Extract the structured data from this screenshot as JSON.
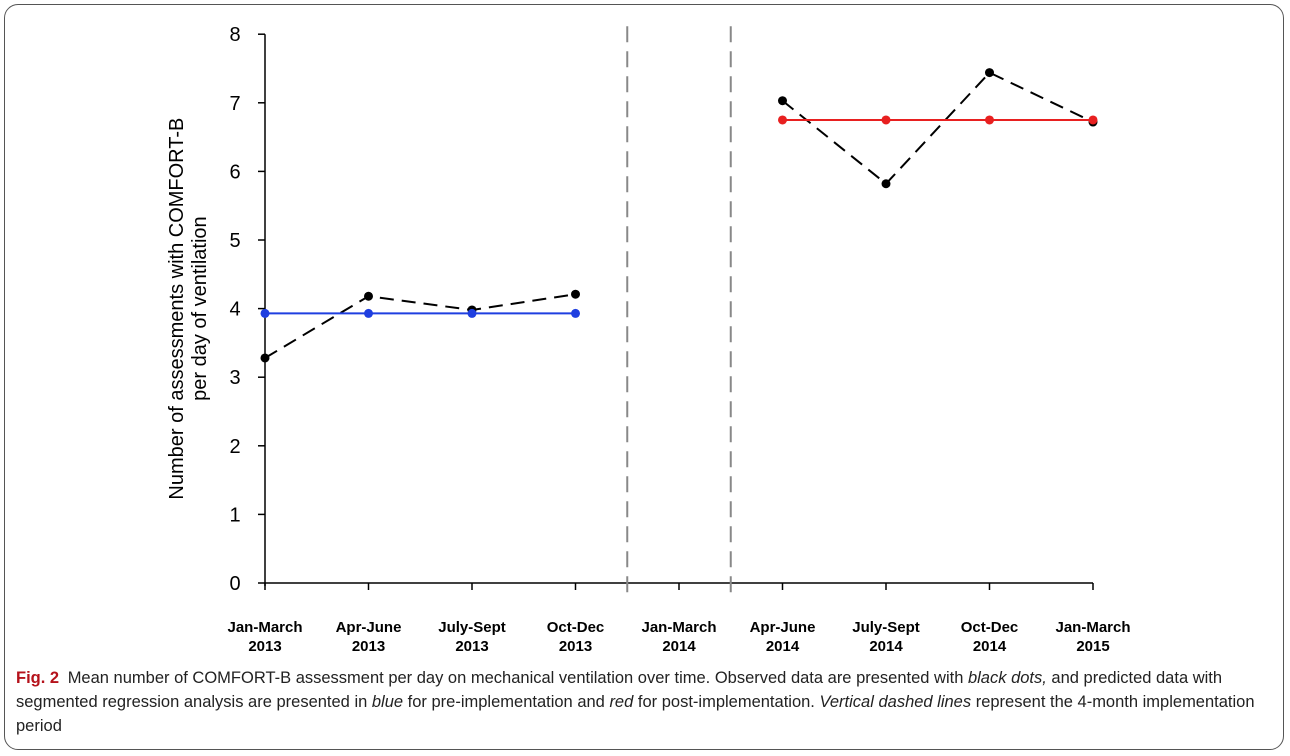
{
  "chart_data": {
    "type": "line",
    "ylabel_line1": "Number of assessments with COMFORT-B",
    "ylabel_line2": "per day of ventilation",
    "ylim": [
      0,
      8
    ],
    "yticks": [
      0,
      1,
      2,
      3,
      4,
      5,
      6,
      7,
      8
    ],
    "categories": [
      [
        "Jan-March",
        "2013"
      ],
      [
        "Apr-June",
        "2013"
      ],
      [
        "July-Sept",
        "2013"
      ],
      [
        "Oct-Dec",
        "2013"
      ],
      [
        "Jan-March",
        "2014"
      ],
      [
        "Apr-June",
        "2014"
      ],
      [
        "July-Sept",
        "2014"
      ],
      [
        "Oct-Dec",
        "2014"
      ],
      [
        "Jan-March",
        "2015"
      ]
    ],
    "series": [
      {
        "values": [
          3.28,
          4.18,
          3.98,
          4.21,
          null,
          7.03,
          5.82,
          7.44,
          6.72
        ],
        "color": "#000000",
        "style": "dashed-black-dots"
      },
      {
        "values": [
          3.93,
          3.93,
          3.93,
          3.93,
          null,
          null,
          null,
          null,
          null
        ],
        "color": "#1f3fe0",
        "style": "solid"
      },
      {
        "values": [
          null,
          null,
          null,
          null,
          null,
          6.75,
          6.75,
          6.75,
          6.75
        ],
        "color": "#e82020",
        "style": "solid"
      }
    ],
    "vertical_dashed_lines_at": [
      3.5,
      4.5
    ],
    "grid": false
  },
  "caption": {
    "fig_label": "Fig. 2",
    "t1": "Mean number of COMFORT-B assessment per day on mechanical ventilation over time. Observed data are presented with ",
    "i1": "black dots,",
    "t2": " and predicted data with segmented regression analysis are presented in ",
    "i2": "blue",
    "t3": " for pre-implementation and ",
    "i3": "red",
    "t4": " for post-implementation. ",
    "i4": "Vertical dashed lines",
    "t5": " represent the 4-month implementation period"
  }
}
